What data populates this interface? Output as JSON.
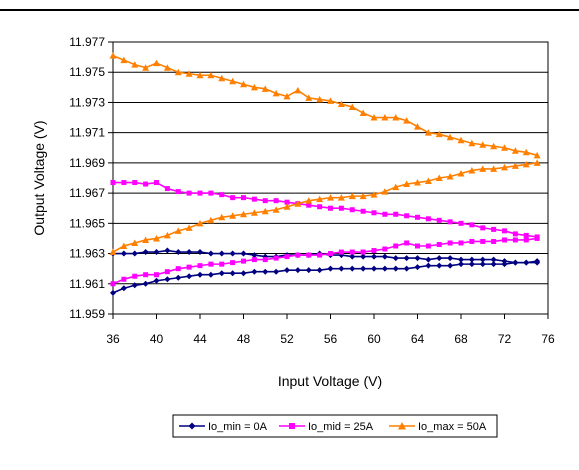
{
  "chart_data": {
    "type": "line",
    "title": "",
    "xlabel": "Input Voltage (V)",
    "ylabel": "Output Voltage (V)",
    "xlim": [
      36,
      76
    ],
    "ylim": [
      11.959,
      11.977
    ],
    "xticks": [
      "36",
      "40",
      "44",
      "48",
      "52",
      "56",
      "60",
      "64",
      "68",
      "72",
      "76"
    ],
    "yticks": [
      "11.959",
      "11.961",
      "11.963",
      "11.965",
      "11.967",
      "11.969",
      "11.971",
      "11.973",
      "11.975",
      "11.977"
    ],
    "grid": "horizontal",
    "legend_position": "bottom",
    "colors": {
      "Io_min": "#000080",
      "Io_mid": "#ff00ff",
      "Io_max": "#ff8000"
    },
    "series": [
      {
        "name": "Io_min = 0A",
        "marker": "diamond",
        "x": [
          36,
          37,
          38,
          39,
          40,
          41,
          42,
          43,
          44,
          45,
          46,
          47,
          48,
          49,
          50,
          51,
          52,
          53,
          54,
          55,
          56,
          57,
          58,
          59,
          60,
          61,
          62,
          63,
          64,
          65,
          66,
          67,
          68,
          69,
          70,
          71,
          72,
          73,
          74,
          75
        ],
        "values": [
          11.963,
          11.963,
          11.963,
          11.9631,
          11.9631,
          11.9632,
          11.9631,
          11.9631,
          11.9631,
          11.963,
          11.963,
          11.963,
          11.963,
          11.9629,
          11.9628,
          11.9628,
          11.9629,
          11.9629,
          11.9629,
          11.963,
          11.9629,
          11.9629,
          11.9628,
          11.9628,
          11.9628,
          11.9628,
          11.9627,
          11.9627,
          11.9627,
          11.9626,
          11.9627,
          11.9627,
          11.9626,
          11.9626,
          11.9626,
          11.9626,
          11.9625,
          11.9624,
          11.9624,
          11.9625
        ]
      },
      {
        "name": "Io_min = 0A",
        "marker": "diamond",
        "x": [
          36,
          37,
          38,
          39,
          40,
          41,
          42,
          43,
          44,
          45,
          46,
          47,
          48,
          49,
          50,
          51,
          52,
          53,
          54,
          55,
          56,
          57,
          58,
          59,
          60,
          61,
          62,
          63,
          64,
          65,
          66,
          67,
          68,
          69,
          70,
          71,
          72,
          73,
          74,
          75
        ],
        "values": [
          11.9604,
          11.9607,
          11.9609,
          11.961,
          11.9612,
          11.9613,
          11.9614,
          11.9615,
          11.9616,
          11.9616,
          11.9617,
          11.9617,
          11.9617,
          11.9618,
          11.9618,
          11.9618,
          11.9619,
          11.9619,
          11.9619,
          11.9619,
          11.962,
          11.962,
          11.962,
          11.962,
          11.962,
          11.962,
          11.962,
          11.962,
          11.9621,
          11.9622,
          11.9622,
          11.9622,
          11.9623,
          11.9623,
          11.9623,
          11.9623,
          11.9623,
          11.9624,
          11.9624,
          11.9624
        ]
      },
      {
        "name": "Io_mid = 25A",
        "marker": "square",
        "x": [
          36,
          37,
          38,
          39,
          40,
          41,
          42,
          43,
          44,
          45,
          46,
          47,
          48,
          49,
          50,
          51,
          52,
          53,
          54,
          55,
          56,
          57,
          58,
          59,
          60,
          61,
          62,
          63,
          64,
          65,
          66,
          67,
          68,
          69,
          70,
          71,
          72,
          73,
          74,
          75
        ],
        "values": [
          11.9677,
          11.9677,
          11.9677,
          11.9676,
          11.9677,
          11.9673,
          11.9671,
          11.967,
          11.967,
          11.967,
          11.9669,
          11.9667,
          11.9667,
          11.9666,
          11.9665,
          11.9665,
          11.9664,
          11.9663,
          11.9662,
          11.9661,
          11.966,
          11.966,
          11.9659,
          11.9658,
          11.9657,
          11.9656,
          11.9656,
          11.9655,
          11.9654,
          11.9653,
          11.9652,
          11.9651,
          11.965,
          11.9649,
          11.9647,
          11.9646,
          11.9645,
          11.9643,
          11.9642,
          11.9641
        ]
      },
      {
        "name": "Io_mid = 25A",
        "marker": "square",
        "x": [
          36,
          37,
          38,
          39,
          40,
          41,
          42,
          43,
          44,
          45,
          46,
          47,
          48,
          49,
          50,
          51,
          52,
          53,
          54,
          55,
          56,
          57,
          58,
          59,
          60,
          61,
          62,
          63,
          64,
          65,
          66,
          67,
          68,
          69,
          70,
          71,
          72,
          73,
          74,
          75
        ],
        "values": [
          11.961,
          11.9613,
          11.9615,
          11.9616,
          11.9616,
          11.9618,
          11.962,
          11.9621,
          11.9622,
          11.9623,
          11.9623,
          11.9624,
          11.9625,
          11.9626,
          11.9626,
          11.9627,
          11.9628,
          11.9629,
          11.9629,
          11.9629,
          11.963,
          11.9631,
          11.9631,
          11.9631,
          11.9632,
          11.9633,
          11.9635,
          11.9637,
          11.9635,
          11.9635,
          11.9636,
          11.9637,
          11.9637,
          11.9638,
          11.9638,
          11.9638,
          11.9639,
          11.9639,
          11.9639,
          11.964
        ]
      },
      {
        "name": "Io_max = 50A",
        "marker": "triangle",
        "x": [
          36,
          37,
          38,
          39,
          40,
          41,
          42,
          43,
          44,
          45,
          46,
          47,
          48,
          49,
          50,
          51,
          52,
          53,
          54,
          55,
          56,
          57,
          58,
          59,
          60,
          61,
          62,
          63,
          64,
          65,
          66,
          67,
          68,
          69,
          70,
          71,
          72,
          73,
          74,
          75
        ],
        "values": [
          11.9761,
          11.9758,
          11.9755,
          11.9753,
          11.9756,
          11.9753,
          11.975,
          11.9749,
          11.9748,
          11.9748,
          11.9746,
          11.9744,
          11.9742,
          11.974,
          11.9739,
          11.9736,
          11.9734,
          11.9738,
          11.9733,
          11.9732,
          11.9731,
          11.9729,
          11.9727,
          11.9723,
          11.972,
          11.972,
          11.972,
          11.9718,
          11.9714,
          11.971,
          11.9709,
          11.9707,
          11.9705,
          11.9703,
          11.9702,
          11.9701,
          11.97,
          11.9698,
          11.9697,
          11.9695
        ]
      },
      {
        "name": "Io_max = 50A",
        "marker": "triangle",
        "x": [
          36,
          37,
          38,
          39,
          40,
          41,
          42,
          43,
          44,
          45,
          46,
          47,
          48,
          49,
          50,
          51,
          52,
          53,
          54,
          55,
          56,
          57,
          58,
          59,
          60,
          61,
          62,
          63,
          64,
          65,
          66,
          67,
          68,
          69,
          70,
          71,
          72,
          73,
          74,
          75
        ],
        "values": [
          11.9631,
          11.9635,
          11.9637,
          11.9639,
          11.964,
          11.9642,
          11.9645,
          11.9647,
          11.965,
          11.9652,
          11.9654,
          11.9655,
          11.9656,
          11.9657,
          11.9658,
          11.9659,
          11.9661,
          11.9663,
          11.9665,
          11.9666,
          11.9667,
          11.9667,
          11.9668,
          11.9668,
          11.9669,
          11.9671,
          11.9674,
          11.9676,
          11.9677,
          11.9678,
          11.968,
          11.9681,
          11.9683,
          11.9685,
          11.9686,
          11.9686,
          11.9687,
          11.9688,
          11.9689,
          11.969
        ]
      }
    ],
    "legend": [
      "Io_min = 0A",
      "Io_mid = 25A",
      "Io_max = 50A"
    ]
  }
}
